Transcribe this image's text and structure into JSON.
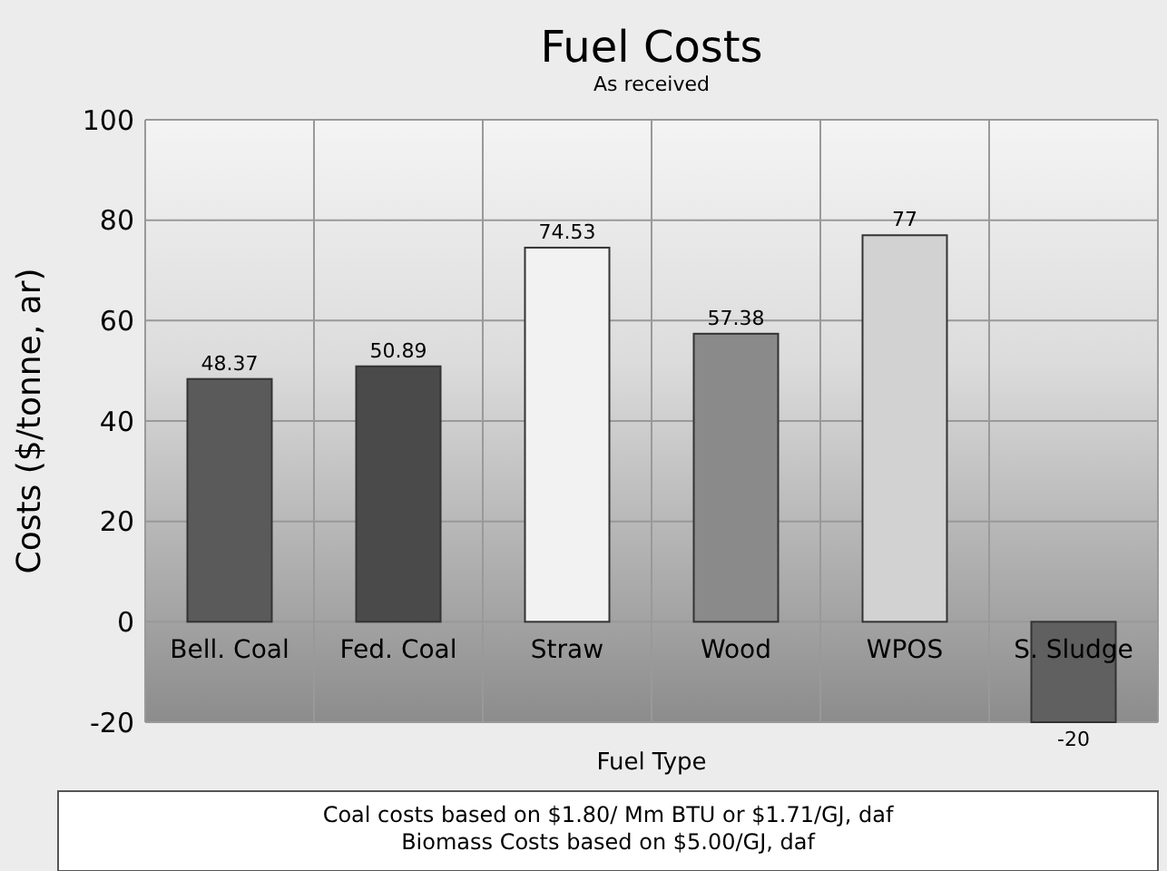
{
  "chart_data": {
    "type": "bar",
    "title": "Fuel Costs",
    "subtitle": "As received",
    "xlabel": "Fuel Type",
    "ylabel": "Costs  ($/tonne, ar)",
    "categories": [
      "Bell. Coal",
      "Fed. Coal",
      "Straw",
      "Wood",
      "WPOS",
      "S. Sludge"
    ],
    "values": [
      48.37,
      50.89,
      74.53,
      57.38,
      77,
      -20
    ],
    "colors": [
      "#5a5a5a",
      "#4a4a4a",
      "#f2f2f2",
      "#8a8a8a",
      "#d2d2d2",
      "#606060"
    ],
    "data_labels": true,
    "ylim": [
      -20,
      100
    ],
    "yticks": [
      -20,
      0,
      20,
      40,
      60,
      80,
      100
    ],
    "grid": true,
    "annotations": [
      "Coal costs based on $1.80/ Mm BTU or $1.71/GJ, daf",
      "Biomass Costs based on $5.00/GJ, daf"
    ]
  }
}
